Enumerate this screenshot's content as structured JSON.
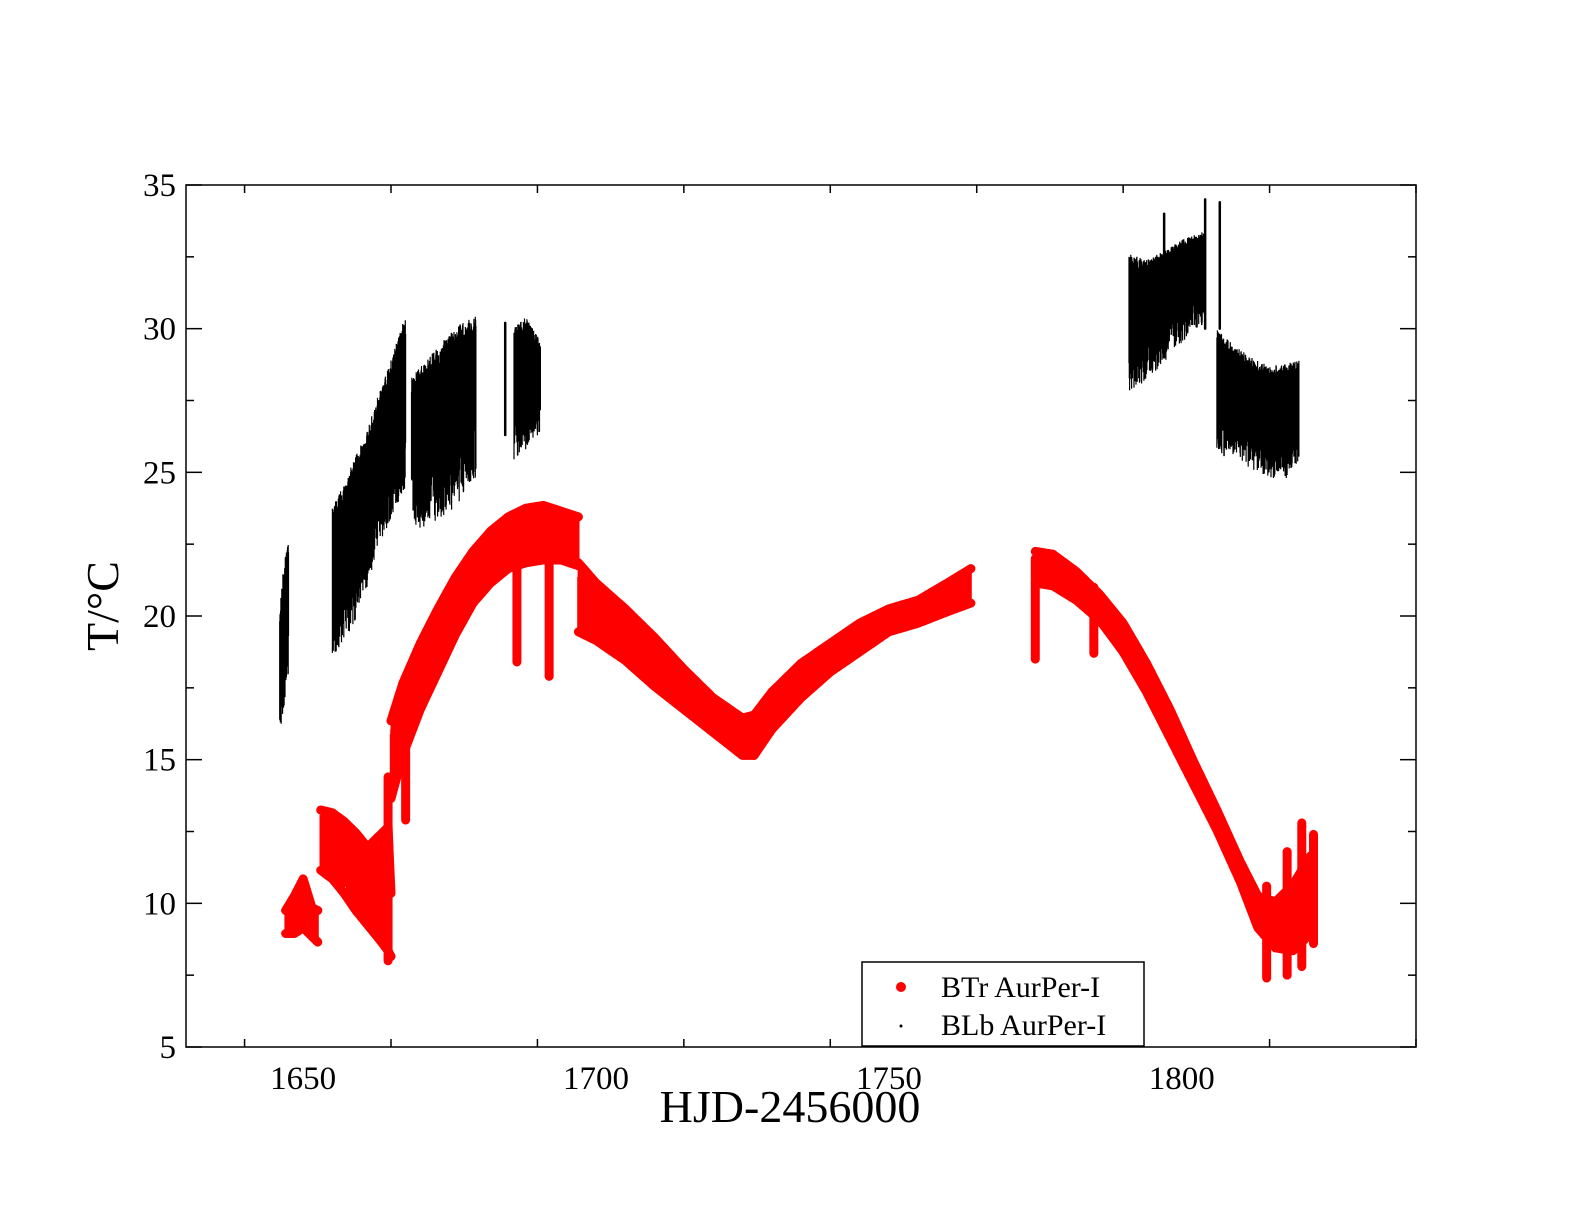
{
  "chart_data": {
    "type": "scatter",
    "xlabel": "HJD-2456000",
    "ylabel": "T/°C",
    "xlim": [
      1630,
      1840
    ],
    "ylim": [
      5,
      35
    ],
    "x_ticks": [
      1650,
      1700,
      1750,
      1800
    ],
    "y_ticks": [
      5,
      10,
      15,
      20,
      25,
      30,
      35
    ],
    "legend_position": "bottom-center",
    "series": [
      {
        "name": "BTr AurPer-I",
        "color": "#ff0000",
        "marker": "filled-circle",
        "segments": [
          {
            "x": [
              1647.0,
              1648.5,
              1650.0,
              1651.5,
              1652.5
            ],
            "low": [
              8.8,
              8.8,
              9.0,
              8.7,
              8.5
            ],
            "high": [
              9.9,
              10.4,
              11.0,
              10.0,
              9.9
            ]
          },
          {
            "x": [
              1653.0,
              1655.0,
              1657.0,
              1659.0,
              1661.0,
              1663.0,
              1664.5,
              1665.0
            ],
            "low": [
              11.0,
              10.7,
              10.2,
              9.6,
              9.1,
              8.6,
              8.2,
              8.0
            ],
            "high": [
              13.4,
              13.3,
              13.0,
              12.6,
              12.1,
              12.5,
              12.8,
              10.5
            ]
          },
          {
            "x": [
              1665.0,
              1667.0,
              1670.0,
              1673.0,
              1676.0,
              1679.0,
              1682.0,
              1685.0,
              1688.0,
              1691.0,
              1694.0,
              1697.0
            ],
            "low": [
              13.5,
              15.0,
              16.6,
              17.9,
              19.2,
              20.3,
              21.0,
              21.5,
              21.7,
              21.8,
              21.8,
              21.6
            ],
            "high": [
              16.5,
              17.8,
              19.2,
              20.4,
              21.5,
              22.4,
              23.1,
              23.6,
              23.9,
              24.0,
              23.8,
              23.6
            ]
          },
          {
            "x": [
              1697.0,
              1700.0,
              1705.0,
              1710.0,
              1715.0,
              1720.0,
              1725.0,
              1727.0
            ],
            "low": [
              19.3,
              19.0,
              18.3,
              17.4,
              16.6,
              15.8,
              15.0,
              15.0
            ],
            "high": [
              22.0,
              21.3,
              20.4,
              19.4,
              18.3,
              17.3,
              16.6,
              16.7
            ]
          },
          {
            "x": [
              1727.0,
              1730.0,
              1735.0,
              1740.0,
              1745.0,
              1750.0,
              1755.0,
              1760.0,
              1764.0
            ],
            "low": [
              15.0,
              15.9,
              17.0,
              17.9,
              18.6,
              19.3,
              19.6,
              20.0,
              20.3
            ],
            "high": [
              16.7,
              17.5,
              18.5,
              19.2,
              19.9,
              20.4,
              20.7,
              21.3,
              21.8
            ]
          },
          {
            "x": [
              1775.0,
              1778.0,
              1782.0,
              1786.0,
              1790.0,
              1794.0,
              1798.0,
              1802.0,
              1806.0,
              1810.0,
              1813.0,
              1816.0,
              1819.0,
              1822.0
            ],
            "low": [
              21.0,
              20.9,
              20.4,
              19.7,
              18.6,
              17.2,
              15.6,
              14.0,
              12.4,
              10.6,
              9.0,
              8.3,
              8.2,
              8.8
            ],
            "high": [
              22.4,
              22.3,
              21.7,
              20.9,
              19.9,
              18.5,
              16.9,
              15.1,
              13.4,
              11.6,
              10.4,
              10.2,
              10.8,
              11.8
            ]
          }
        ],
        "spikes": [
          {
            "x": 1664.5,
            "low": 8.0,
            "high": 14.4
          },
          {
            "x": 1667.5,
            "low": 12.9,
            "high": 16.0
          },
          {
            "x": 1686.5,
            "low": 18.4,
            "high": 23.3
          },
          {
            "x": 1692.0,
            "low": 17.9,
            "high": 23.5
          },
          {
            "x": 1775.0,
            "low": 18.5,
            "high": 22.0
          },
          {
            "x": 1785.0,
            "low": 18.7,
            "high": 21.0
          },
          {
            "x": 1814.5,
            "low": 7.4,
            "high": 10.6
          },
          {
            "x": 1818.0,
            "low": 7.5,
            "high": 11.8
          },
          {
            "x": 1820.5,
            "low": 7.8,
            "high": 12.8
          },
          {
            "x": 1822.5,
            "low": 8.6,
            "high": 12.4
          }
        ]
      },
      {
        "name": "BLb AurPer-I",
        "color": "#000000",
        "marker": "dot",
        "segments": [
          {
            "x": [
              1646.0,
              1646.7,
              1647.5
            ],
            "low": [
              15.6,
              16.8,
              18.0
            ],
            "high": [
              20.2,
              21.8,
              22.7
            ]
          },
          {
            "x": [
              1655.0,
              1657.0,
              1659.0,
              1661.0,
              1663.0,
              1665.0,
              1667.5
            ],
            "low": [
              18.6,
              19.1,
              19.9,
              20.9,
              22.3,
              23.4,
              24.5
            ],
            "high": [
              23.8,
              24.6,
              25.6,
              26.5,
              27.8,
              28.9,
              30.5
            ]
          },
          {
            "x": [
              1668.5,
              1671.0,
              1674.0,
              1677.0,
              1679.5
            ],
            "low": [
              23.0,
              23.1,
              23.4,
              24.0,
              24.8
            ],
            "high": [
              28.3,
              28.9,
              29.6,
              30.2,
              30.5
            ]
          },
          {
            "x": [
              1686.0,
              1688.0,
              1690.5
            ],
            "low": [
              25.4,
              25.8,
              26.4
            ],
            "high": [
              30.1,
              30.4,
              29.6
            ]
          },
          {
            "x": [
              1791.0,
              1794.0,
              1797.0,
              1800.0,
              1804.0
            ],
            "low": [
              27.8,
              28.2,
              28.8,
              29.5,
              30.2
            ],
            "high": [
              32.6,
              32.4,
              32.7,
              33.1,
              33.4
            ]
          },
          {
            "x": [
              1806.0,
              1809.0,
              1812.0,
              1815.0,
              1818.0,
              1820.0
            ],
            "low": [
              25.6,
              25.5,
              25.1,
              24.8,
              24.8,
              25.0
            ],
            "high": [
              30.0,
              29.4,
              29.0,
              28.7,
              28.8,
              28.9
            ]
          }
        ],
        "spikes": [
          {
            "x": 1684.5,
            "low": 26.3,
            "high": 30.2
          },
          {
            "x": 1804.0,
            "low": 30.0,
            "high": 34.5
          },
          {
            "x": 1806.5,
            "low": 30.0,
            "high": 34.4
          },
          {
            "x": 1797.0,
            "low": 29.0,
            "high": 34.0
          }
        ]
      }
    ]
  }
}
